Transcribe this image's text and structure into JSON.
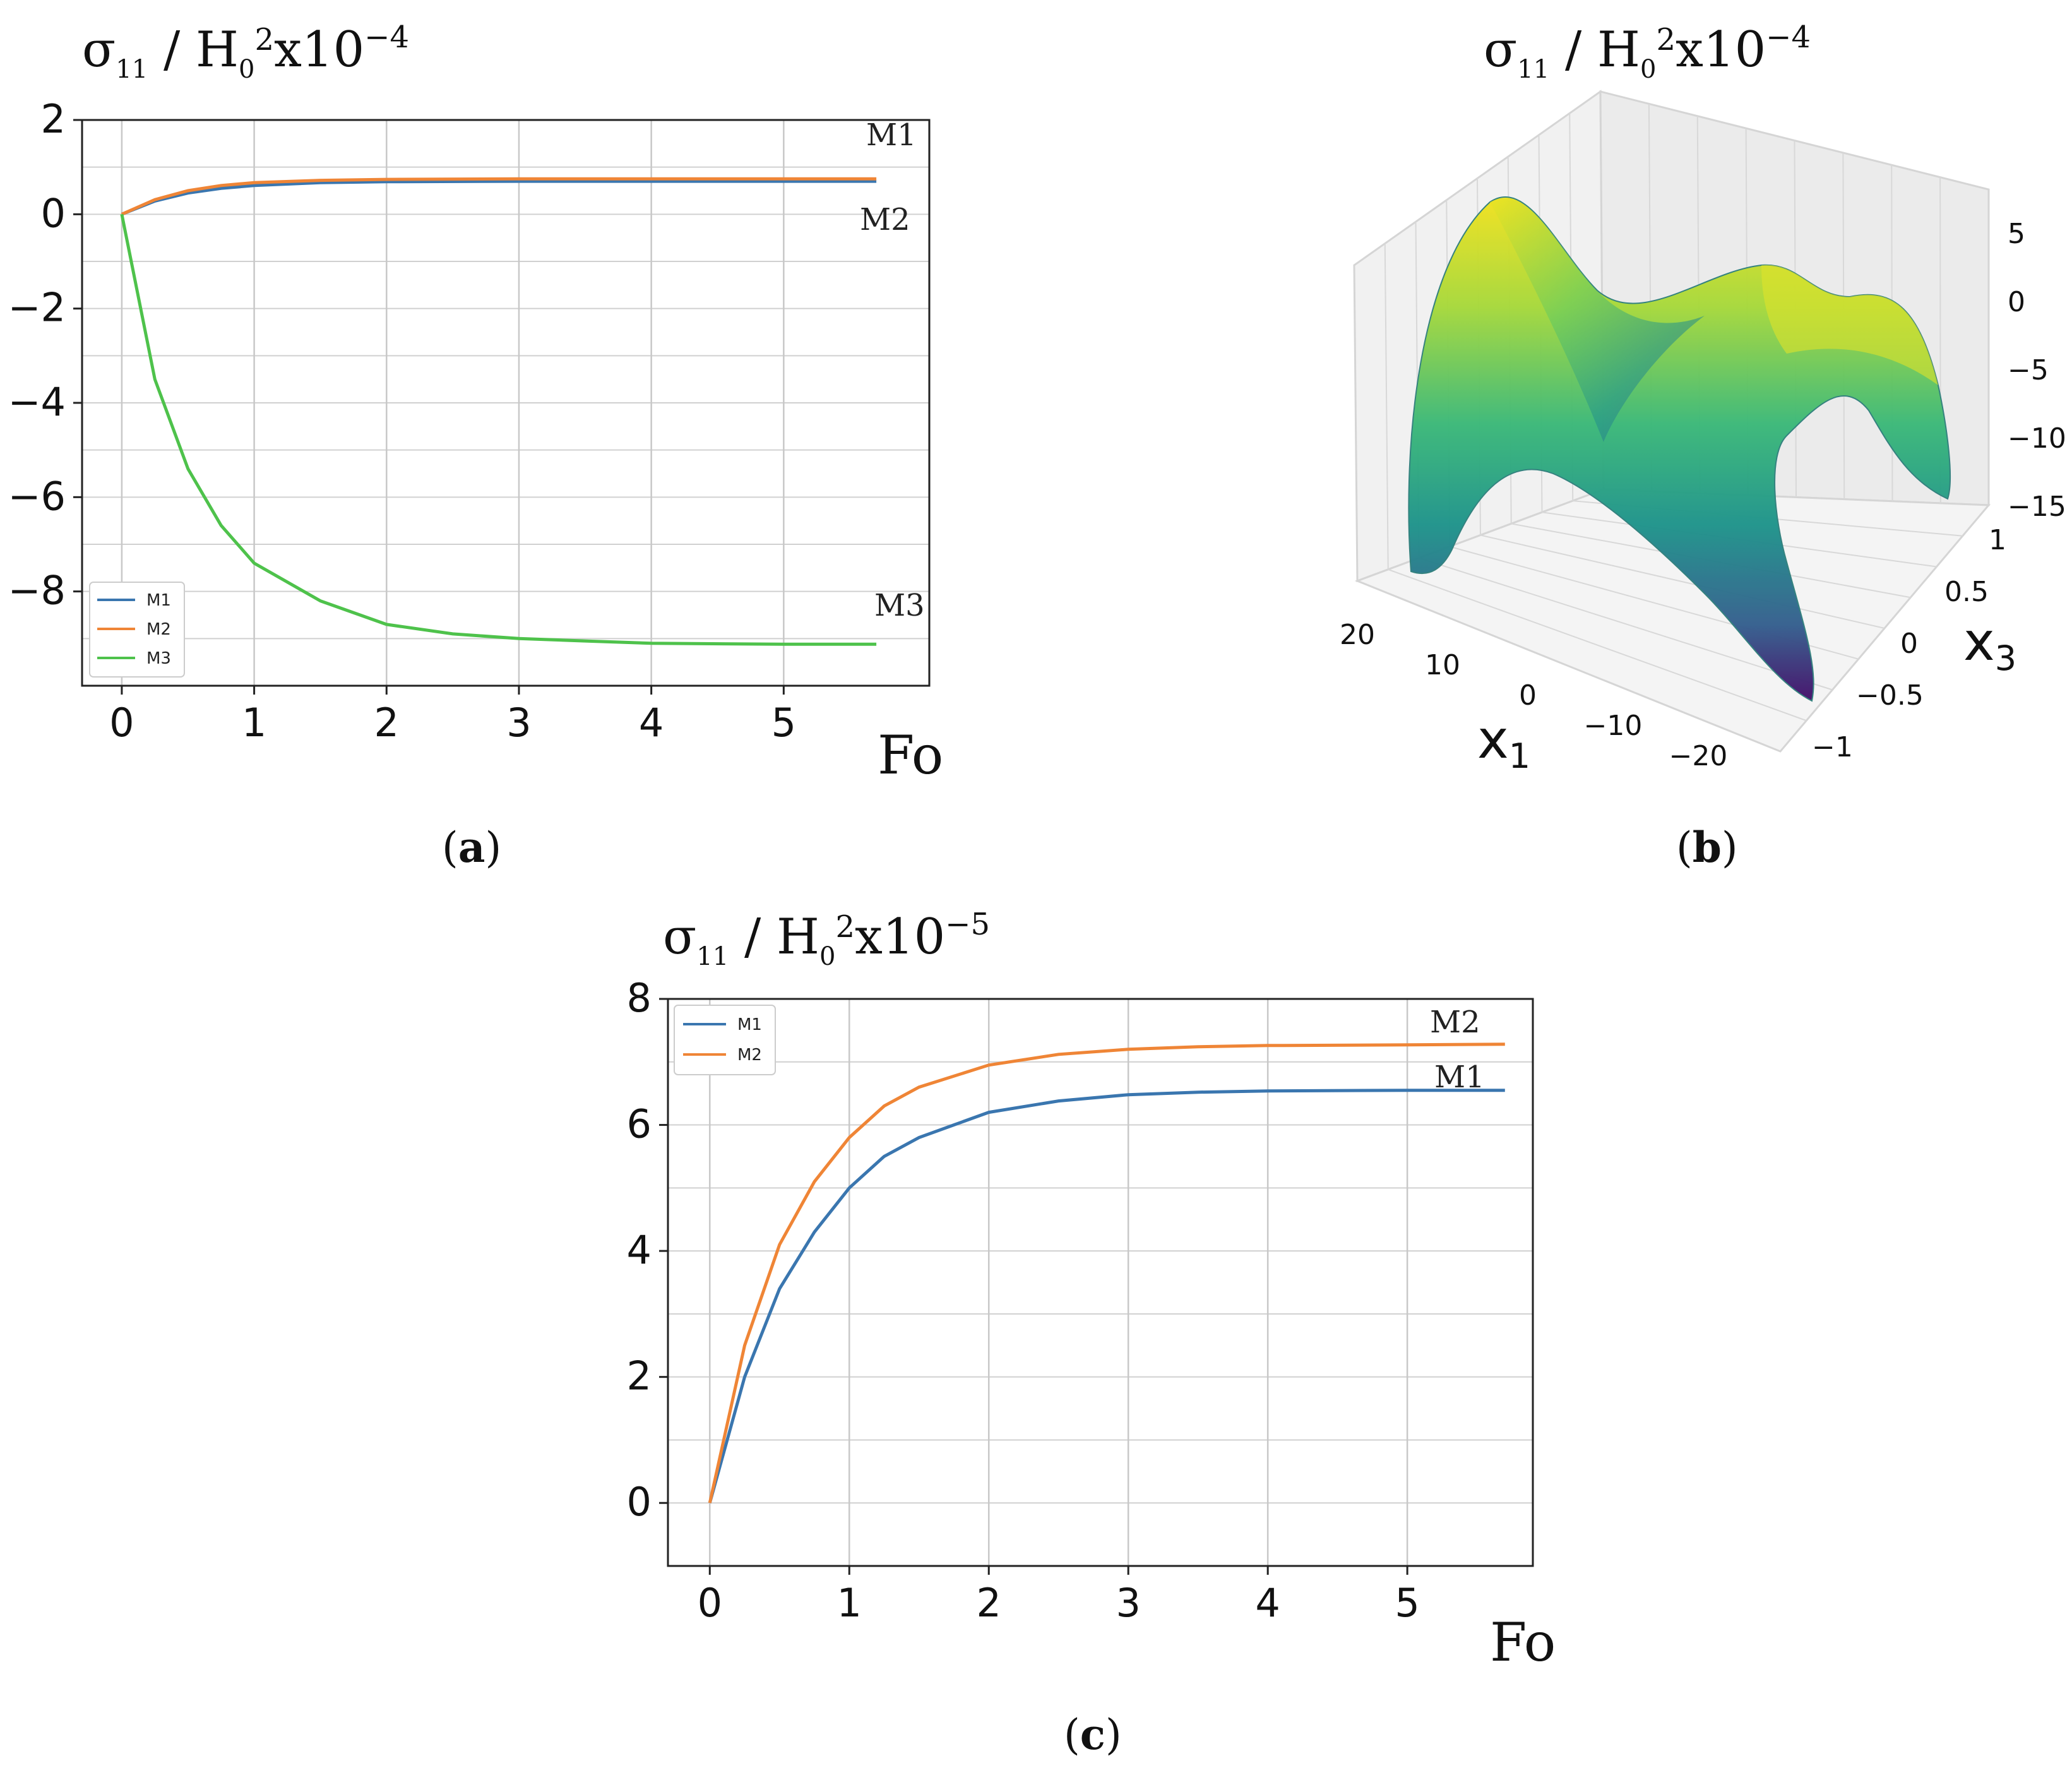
{
  "panels": {
    "a": {
      "label": "a",
      "ylabel": {
        "base": "σ",
        "sub": "11",
        "mid": " / H",
        "sub2": "0",
        "sup": "2",
        "tail": "x10",
        "exp": "−4"
      },
      "xlabel": "Fo",
      "annotations": [
        "M1",
        "M2",
        "M3"
      ],
      "legend": [
        "M1",
        "M2",
        "M3"
      ]
    },
    "b": {
      "label": "b",
      "zlabel": {
        "base": "σ",
        "sub": "11",
        "mid": " / H",
        "sub2": "0",
        "sup": "2",
        "tail": "x10",
        "exp": "−4"
      },
      "xlabel": {
        "base": "x",
        "sub": "1"
      },
      "ylabel": {
        "base": "x",
        "sub": "3"
      }
    },
    "c": {
      "label": "c",
      "ylabel": {
        "base": "σ",
        "sub": "11",
        "mid": " / H",
        "sub2": "0",
        "sup": "2",
        "tail": "x10",
        "exp": "−5"
      },
      "xlabel": "Fo",
      "annotations": [
        "M2",
        "M1"
      ],
      "legend": [
        "M1",
        "M2"
      ]
    }
  },
  "colors": {
    "M1": "#3a76af",
    "M2": "#ef8536",
    "M3": "#4ec24b"
  },
  "chart_data": [
    {
      "id": "a",
      "type": "line",
      "x_ticks": [
        0,
        1,
        2,
        3,
        4,
        5
      ],
      "y_ticks": [
        2,
        0,
        -2,
        -4,
        -6,
        -8
      ],
      "xlim": [
        -0.3,
        6.1
      ],
      "ylim": [
        -10,
        2
      ],
      "grid": true,
      "legend_position": "lower-left",
      "series": [
        {
          "name": "M1",
          "x": [
            0,
            0.25,
            0.5,
            0.75,
            1,
            1.5,
            2,
            3,
            4,
            5,
            5.7
          ],
          "y": [
            0,
            0.28,
            0.45,
            0.55,
            0.61,
            0.67,
            0.69,
            0.7,
            0.7,
            0.7,
            0.7
          ]
        },
        {
          "name": "M2",
          "x": [
            0,
            0.25,
            0.5,
            0.75,
            1,
            1.5,
            2,
            3,
            4,
            5,
            5.7
          ],
          "y": [
            0,
            0.31,
            0.5,
            0.61,
            0.67,
            0.72,
            0.74,
            0.75,
            0.75,
            0.75,
            0.75
          ]
        },
        {
          "name": "M3",
          "x": [
            0,
            0.25,
            0.5,
            0.75,
            1,
            1.5,
            2,
            2.5,
            3,
            3.5,
            4,
            5,
            5.7
          ],
          "y": [
            0,
            -3.5,
            -5.4,
            -6.6,
            -7.4,
            -8.2,
            -8.7,
            -8.9,
            -9.0,
            -9.05,
            -9.1,
            -9.12,
            -9.12
          ]
        }
      ]
    },
    {
      "id": "b",
      "type": "surface",
      "x_ticks": [
        20,
        10,
        0,
        -10,
        -20
      ],
      "y_ticks": [
        1,
        0.5,
        0,
        -0.5,
        -1
      ],
      "z_ticks": [
        5,
        0,
        -5,
        -10,
        -15
      ],
      "zlim": [
        -15,
        7
      ],
      "colormap": "viridis"
    },
    {
      "id": "c",
      "type": "line",
      "x_ticks": [
        0,
        1,
        2,
        3,
        4,
        5
      ],
      "y_ticks": [
        8,
        6,
        4,
        2,
        0
      ],
      "xlim": [
        -0.3,
        5.9
      ],
      "ylim": [
        -1,
        8
      ],
      "grid": true,
      "legend_position": "top-left",
      "series": [
        {
          "name": "M1",
          "x": [
            0,
            0.25,
            0.5,
            0.75,
            1,
            1.25,
            1.5,
            2,
            2.5,
            3,
            3.5,
            4,
            5,
            5.7
          ],
          "y": [
            0,
            2.0,
            3.4,
            4.3,
            5.0,
            5.5,
            5.8,
            6.2,
            6.38,
            6.48,
            6.52,
            6.54,
            6.55,
            6.55
          ]
        },
        {
          "name": "M2",
          "x": [
            0,
            0.25,
            0.5,
            0.75,
            1,
            1.25,
            1.5,
            2,
            2.5,
            3,
            3.5,
            4,
            5,
            5.7
          ],
          "y": [
            0,
            2.5,
            4.1,
            5.1,
            5.8,
            6.3,
            6.6,
            6.95,
            7.12,
            7.2,
            7.24,
            7.26,
            7.27,
            7.28
          ]
        }
      ]
    }
  ]
}
